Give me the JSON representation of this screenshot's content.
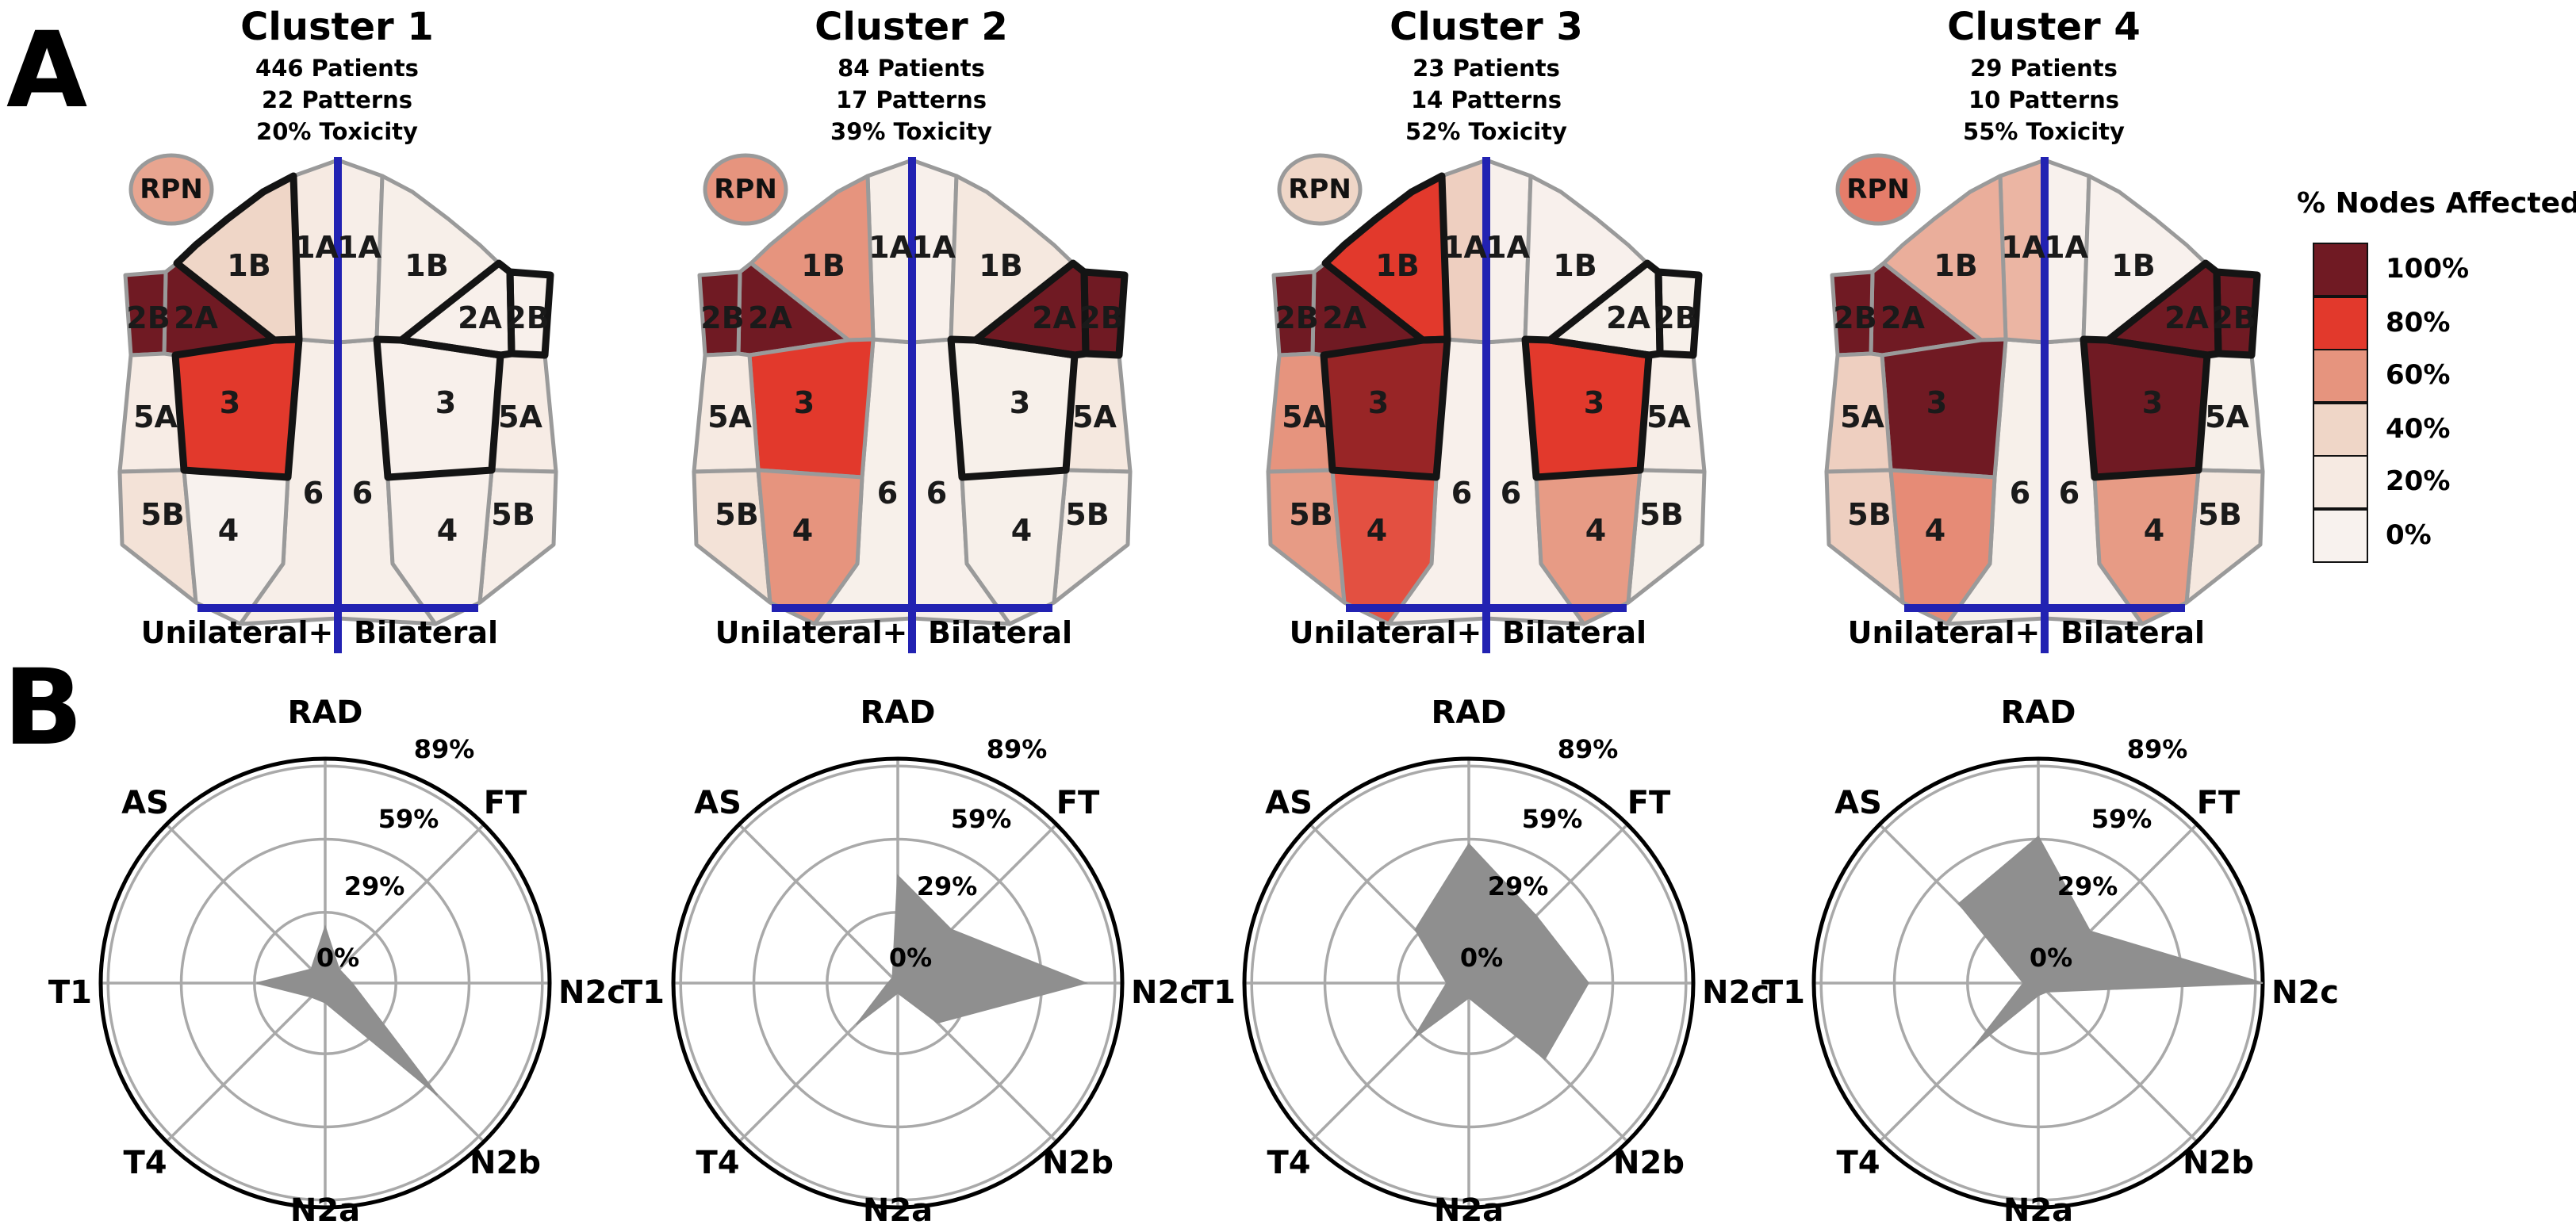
{
  "figure": {
    "panel_a_label": "A",
    "panel_b_label": "B"
  },
  "legend": {
    "title": "% Nodes Affected",
    "entries": [
      {
        "label": "100%",
        "value": 100
      },
      {
        "label": "80%",
        "value": 80
      },
      {
        "label": "60%",
        "value": 60
      },
      {
        "label": "40%",
        "value": 40
      },
      {
        "label": "20%",
        "value": 20
      },
      {
        "label": "0%",
        "value": 0
      }
    ]
  },
  "diagram": {
    "region_labels": [
      "1A",
      "1B",
      "2A",
      "2B",
      "3",
      "4",
      "5A",
      "5B",
      "6"
    ],
    "rpn_label": "RPN",
    "bottom_left_label": "Unilateral+",
    "bottom_right_label": "Bilateral"
  },
  "colors": {
    "blue_line": "#2222b2",
    "gray_border": "#9a9a9a",
    "black_outline": "#141414",
    "radar_fill": "#8f8f8f",
    "radar_grid": "#a9a9a9",
    "scale_stops": {
      "0": "#f8f2ee",
      "20": "#f6eae2",
      "40": "#efd6c7",
      "60": "#e6947e",
      "80": "#e2392c",
      "100": "#701a23"
    }
  },
  "clusters": [
    {
      "title": "Cluster 1",
      "stats": [
        "446 Patients",
        "22 Patterns",
        "20% Toxicity"
      ],
      "rpn_pct": 55,
      "node_pct_left": {
        "1A": 20,
        "1B": 40,
        "2A": 100,
        "2B": 100,
        "3": 80,
        "4": 0,
        "5A": 15,
        "5B": 28,
        "6": 10
      },
      "node_pct_right": {
        "1A": 10,
        "1B": 8,
        "2A": 5,
        "2B": 5,
        "3": 5,
        "4": 5,
        "5A": 15,
        "5B": 10,
        "6": 8
      },
      "outlined_left": [
        "1B",
        "3"
      ],
      "outlined_right": [
        "2A",
        "2B",
        "3"
      ],
      "radar": {
        "RAD": 23,
        "FT": 8,
        "N2c": 11,
        "N2b": 65,
        "N2a": 8,
        "T4": 8,
        "T1": 28,
        "AS": 8
      }
    },
    {
      "title": "Cluster 2",
      "stats": [
        "84 Patients",
        "17 Patterns",
        "39% Toxicity"
      ],
      "rpn_pct": 60,
      "node_pct_left": {
        "1A": 8,
        "1B": 60,
        "2A": 100,
        "2B": 100,
        "3": 80,
        "4": 60,
        "5A": 20,
        "5B": 28,
        "6": 6
      },
      "node_pct_right": {
        "1A": 5,
        "1B": 22,
        "2A": 100,
        "2B": 100,
        "3": 6,
        "4": 6,
        "5A": 22,
        "5B": 8,
        "6": 5
      },
      "outlined_left": [],
      "outlined_right": [
        "2A",
        "2B",
        "3"
      ],
      "radar": {
        "RAD": 44,
        "FT": 31,
        "N2c": 77,
        "N2b": 23,
        "N2a": 4,
        "T4": 24,
        "T1": 4,
        "AS": 3
      }
    },
    {
      "title": "Cluster 3",
      "stats": [
        "23 Patients",
        "14 Patterns",
        "52% Toxicity"
      ],
      "rpn_pct": 40,
      "node_pct_left": {
        "1A": 42,
        "1B": 80,
        "2A": 100,
        "2B": 100,
        "3": 93,
        "4": 75,
        "5A": 60,
        "5B": 58,
        "6": 5
      },
      "node_pct_right": {
        "1A": 4,
        "1B": 4,
        "2A": 6,
        "2B": 6,
        "3": 80,
        "4": 58,
        "5A": 10,
        "5B": 6,
        "6": 5
      },
      "outlined_left": [
        "1B",
        "3"
      ],
      "outlined_right": [
        "2A",
        "2B",
        "3"
      ],
      "radar": {
        "RAD": 57,
        "FT": 39,
        "N2c": 49,
        "N2b": 44,
        "N2a": 6,
        "T4": 32,
        "T1": 9,
        "AS": 31
      }
    },
    {
      "title": "Cluster 4",
      "stats": [
        "29 Patients",
        "10 Patterns",
        "55% Toxicity"
      ],
      "rpn_pct": 65,
      "node_pct_left": {
        "1A": 50,
        "1B": 52,
        "2A": 100,
        "2B": 100,
        "3": 100,
        "4": 62,
        "5A": 42,
        "5B": 42,
        "6": 6
      },
      "node_pct_right": {
        "1A": 2,
        "1B": 2,
        "2A": 100,
        "2B": 100,
        "3": 100,
        "4": 58,
        "5A": 6,
        "5B": 22,
        "6": 4
      },
      "outlined_left": [],
      "outlined_right": [
        "2A",
        "2B",
        "3"
      ],
      "radar": {
        "RAD": 60,
        "FT": 30,
        "N2c": 92,
        "N2b": 5,
        "N2a": 5,
        "T4": 38,
        "T1": 6,
        "AS": 46
      }
    }
  ],
  "chart_data": {
    "type": "radar",
    "axes": [
      "RAD",
      "FT",
      "N2c",
      "N2b",
      "N2a",
      "T4",
      "T1",
      "AS"
    ],
    "tick_labels": [
      "0%",
      "29%",
      "59%",
      "89%"
    ],
    "tick_values": [
      0,
      29,
      59,
      89
    ],
    "rmax": 92,
    "legend_position": "none",
    "grid": true,
    "series": [
      {
        "name": "Cluster 1",
        "values": [
          23,
          8,
          11,
          65,
          8,
          8,
          28,
          8
        ]
      },
      {
        "name": "Cluster 2",
        "values": [
          44,
          31,
          77,
          23,
          4,
          24,
          4,
          3
        ]
      },
      {
        "name": "Cluster 3",
        "values": [
          57,
          39,
          49,
          44,
          6,
          32,
          9,
          31
        ]
      },
      {
        "name": "Cluster 4",
        "values": [
          60,
          30,
          92,
          5,
          5,
          38,
          6,
          46
        ]
      }
    ]
  }
}
